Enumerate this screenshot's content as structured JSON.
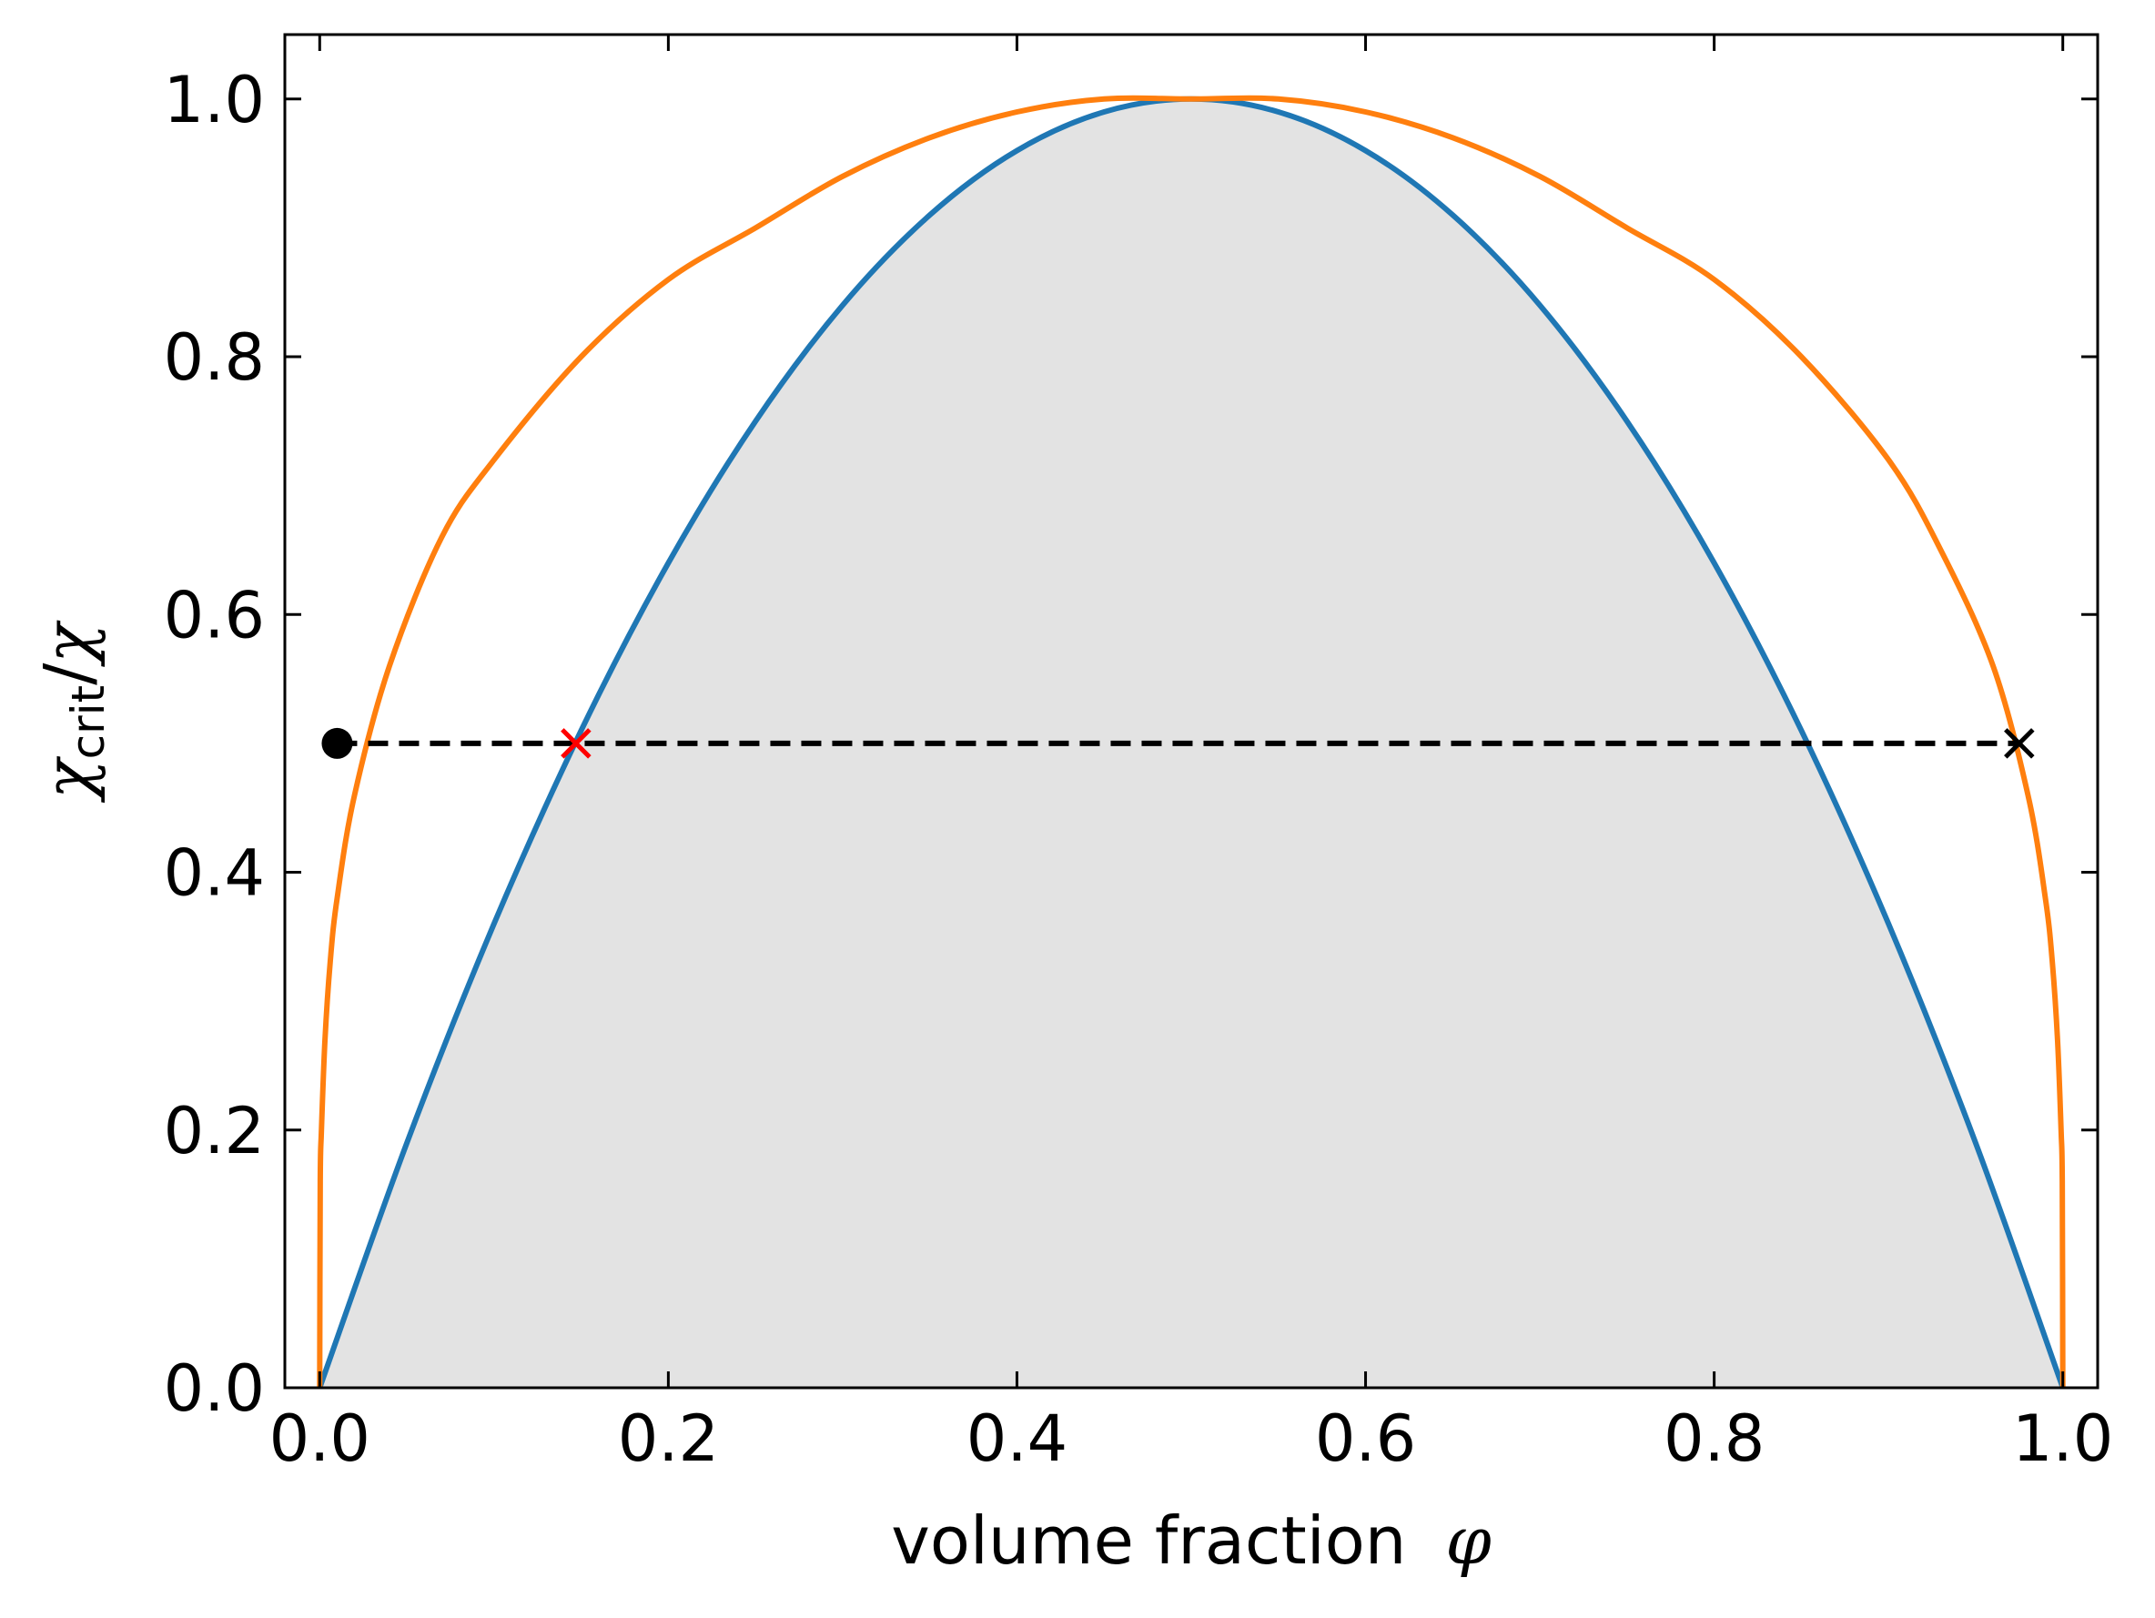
{
  "chart_data": {
    "type": "line",
    "xlabel": "volume fraction",
    "xlabel_symbol": "φ",
    "ylabel_symbol": "χ",
    "ylabel_subscript": "crit",
    "ylabel_denominator": "χ",
    "xlim": [
      -0.02,
      1.02
    ],
    "ylim": [
      0.0,
      1.05
    ],
    "x_ticks": [
      0.0,
      0.2,
      0.4,
      0.6,
      0.8,
      1.0
    ],
    "x_tick_labels": [
      "0.0",
      "0.2",
      "0.4",
      "0.6",
      "0.8",
      "1.0"
    ],
    "y_ticks": [
      0.0,
      0.2,
      0.4,
      0.6,
      0.8,
      1.0
    ],
    "y_tick_labels": [
      "0.0",
      "0.2",
      "0.4",
      "0.6",
      "0.8",
      "1.0"
    ],
    "grid": false,
    "series": [
      {
        "role": "spinodal",
        "color": "#1f77b4",
        "x": [
          0.0,
          0.05,
          0.1,
          0.15,
          0.2,
          0.25,
          0.3,
          0.35,
          0.4,
          0.45,
          0.5,
          0.55,
          0.6,
          0.65,
          0.7,
          0.75,
          0.8,
          0.85,
          0.9,
          0.95,
          1.0
        ],
        "y": [
          0.0,
          0.19,
          0.36,
          0.51,
          0.64,
          0.75,
          0.84,
          0.91,
          0.96,
          0.99,
          1.0,
          0.99,
          0.96,
          0.91,
          0.84,
          0.75,
          0.64,
          0.51,
          0.36,
          0.19,
          0.0
        ],
        "fill_below": "#e3e3e3"
      },
      {
        "role": "binodal",
        "color": "#ff7f0e",
        "x": [
          0.0,
          0.0003,
          0.001,
          0.003,
          0.006,
          0.01,
          0.02,
          0.04,
          0.07,
          0.1,
          0.15,
          0.2,
          0.25,
          0.3,
          0.35,
          0.4,
          0.45,
          0.5,
          0.55,
          0.6,
          0.65,
          0.7,
          0.75,
          0.8,
          0.85,
          0.9,
          0.93,
          0.96,
          0.98,
          0.99,
          0.994,
          0.997,
          0.999,
          0.9997,
          1.0
        ],
        "y": [
          0.0,
          0.16,
          0.2,
          0.27,
          0.33,
          0.38,
          0.46,
          0.56,
          0.66,
          0.72,
          0.8,
          0.86,
          0.9,
          0.94,
          0.97,
          0.99,
          1.0,
          1.0,
          1.0,
          0.99,
          0.97,
          0.94,
          0.9,
          0.86,
          0.8,
          0.72,
          0.65,
          0.56,
          0.46,
          0.38,
          0.33,
          0.27,
          0.2,
          0.16,
          0.0
        ]
      }
    ],
    "tie_line": {
      "x": [
        0.01,
        0.975
      ],
      "y": 0.5,
      "color": "#000000",
      "style": "dashed"
    },
    "markers": [
      {
        "x": 0.01,
        "y": 0.5,
        "shape": "circle",
        "color": "#000000"
      },
      {
        "x": 0.147,
        "y": 0.5,
        "shape": "x",
        "color": "#ff0000"
      },
      {
        "x": 0.975,
        "y": 0.5,
        "shape": "x",
        "color": "#000000"
      }
    ]
  }
}
